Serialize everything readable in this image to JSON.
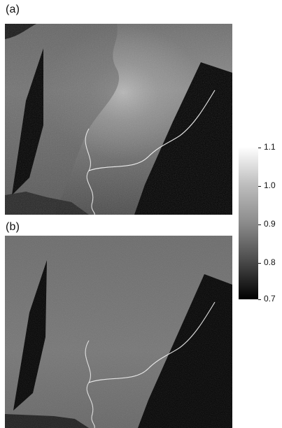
{
  "panels": {
    "a": {
      "label": "(a)"
    },
    "b": {
      "label": "(b)"
    }
  },
  "colorbar": {
    "min": 0.7,
    "max": 1.1,
    "ticks": [
      "1.1",
      "1.0",
      "0.9",
      "0.8",
      "0.7"
    ],
    "colors": {
      "high": "#ffffff",
      "low": "#000000"
    }
  }
}
